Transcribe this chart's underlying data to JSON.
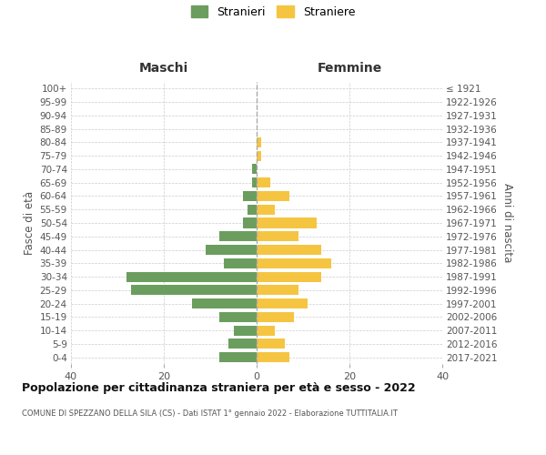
{
  "age_groups": [
    "0-4",
    "5-9",
    "10-14",
    "15-19",
    "20-24",
    "25-29",
    "30-34",
    "35-39",
    "40-44",
    "45-49",
    "50-54",
    "55-59",
    "60-64",
    "65-69",
    "70-74",
    "75-79",
    "80-84",
    "85-89",
    "90-94",
    "95-99",
    "100+"
  ],
  "birth_years": [
    "2017-2021",
    "2012-2016",
    "2007-2011",
    "2002-2006",
    "1997-2001",
    "1992-1996",
    "1987-1991",
    "1982-1986",
    "1977-1981",
    "1972-1976",
    "1967-1971",
    "1962-1966",
    "1957-1961",
    "1952-1956",
    "1947-1951",
    "1942-1946",
    "1937-1941",
    "1932-1936",
    "1927-1931",
    "1922-1926",
    "≤ 1921"
  ],
  "males": [
    8,
    6,
    5,
    8,
    14,
    27,
    28,
    7,
    11,
    8,
    3,
    2,
    3,
    1,
    1,
    0,
    0,
    0,
    0,
    0,
    0
  ],
  "females": [
    7,
    6,
    4,
    8,
    11,
    9,
    14,
    16,
    14,
    9,
    13,
    4,
    7,
    3,
    0,
    1,
    1,
    0,
    0,
    0,
    0
  ],
  "male_color": "#6b9e5e",
  "female_color": "#f5c542",
  "background_color": "#ffffff",
  "grid_color": "#cccccc",
  "title": "Popolazione per cittadinanza straniera per età e sesso - 2022",
  "subtitle": "COMUNE DI SPEZZANO DELLA SILA (CS) - Dati ISTAT 1° gennaio 2022 - Elaborazione TUTTITALIA.IT",
  "xlabel_left": "Maschi",
  "xlabel_right": "Femmine",
  "ylabel_left": "Fasce di età",
  "ylabel_right": "Anni di nascita",
  "legend_male": "Stranieri",
  "legend_female": "Straniere",
  "xlim": 40,
  "bar_height": 0.75
}
